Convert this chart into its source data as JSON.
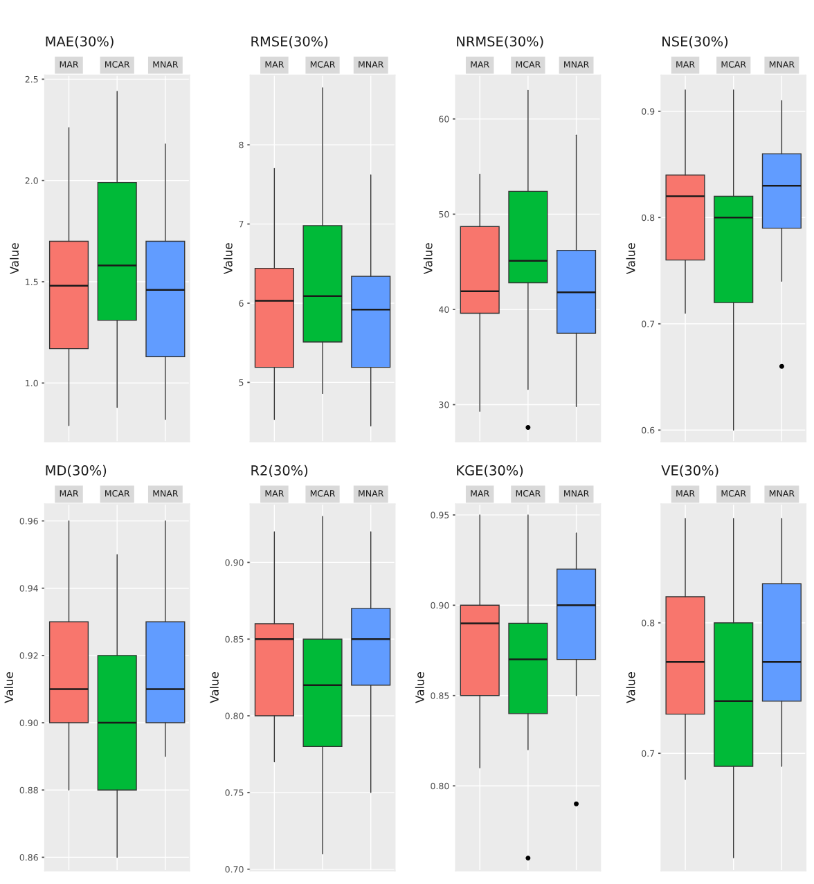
{
  "chart_data": [
    {
      "type": "box",
      "title": "MAE(30%)",
      "ylabel": "Value",
      "categories": [
        "MAR",
        "MCAR",
        "MNAR"
      ],
      "colors": [
        "#f8766d",
        "#00ba38",
        "#619cff"
      ],
      "ylim": [
        0.71,
        2.52
      ],
      "yticks": [
        {
          "value": 1.0,
          "label": "1.0"
        },
        1.5,
        {
          "value": 2.0,
          "label": "2.0"
        },
        2.5
      ],
      "grid": true,
      "boxes": [
        {
          "low": 0.79,
          "q1": 1.17,
          "median": 1.48,
          "q3": 1.7,
          "high": 2.26
        },
        {
          "low": 0.88,
          "q1": 1.31,
          "median": 1.58,
          "q3": 1.99,
          "high": 2.44
        },
        {
          "low": 0.82,
          "q1": 1.13,
          "median": 1.46,
          "q3": 1.7,
          "high": 2.18
        }
      ]
    },
    {
      "type": "box",
      "title": "RMSE(30%)",
      "ylabel": "Value",
      "categories": [
        "MAR",
        "MCAR",
        "MNAR"
      ],
      "colors": [
        "#f8766d",
        "#00ba38",
        "#619cff"
      ],
      "ylim": [
        4.25,
        8.88
      ],
      "yticks": [
        5,
        6,
        7,
        8
      ],
      "grid": true,
      "boxes": [
        {
          "low": 4.53,
          "q1": 5.19,
          "median": 6.03,
          "q3": 6.44,
          "high": 7.7
        },
        {
          "low": 4.86,
          "q1": 5.51,
          "median": 6.09,
          "q3": 6.98,
          "high": 8.72
        },
        {
          "low": 4.45,
          "q1": 5.19,
          "median": 5.92,
          "q3": 6.34,
          "high": 7.62
        }
      ]
    },
    {
      "type": "box",
      "title": "NRMSE(30%)",
      "ylabel": "Value",
      "categories": [
        "MAR",
        "MCAR",
        "MNAR"
      ],
      "colors": [
        "#f8766d",
        "#00ba38",
        "#619cff"
      ],
      "ylim": [
        26.1,
        64.6
      ],
      "yticks": [
        30,
        40,
        50,
        60
      ],
      "grid": true,
      "boxes": [
        {
          "low": 29.3,
          "q1": 39.6,
          "median": 41.9,
          "q3": 48.7,
          "high": 54.2
        },
        {
          "low": 31.6,
          "q1": 42.8,
          "median": 45.1,
          "q3": 52.4,
          "high": 63.0,
          "outliers": [
            27.6
          ]
        },
        {
          "low": 29.8,
          "q1": 37.5,
          "median": 41.8,
          "q3": 46.2,
          "high": 58.3
        }
      ]
    },
    {
      "type": "box",
      "title": "NSE(30%)",
      "ylabel": "Value",
      "categories": [
        "MAR",
        "MCAR",
        "MNAR"
      ],
      "colors": [
        "#f8766d",
        "#00ba38",
        "#619cff"
      ],
      "ylim": [
        0.589,
        0.934
      ],
      "yticks": [
        0.6,
        0.7,
        0.8,
        0.9
      ],
      "grid": true,
      "boxes": [
        {
          "low": 0.71,
          "q1": 0.76,
          "median": 0.82,
          "q3": 0.84,
          "high": 0.92
        },
        {
          "low": 0.6,
          "q1": 0.72,
          "median": 0.8,
          "q3": 0.82,
          "high": 0.92
        },
        {
          "low": 0.74,
          "q1": 0.79,
          "median": 0.83,
          "q3": 0.86,
          "high": 0.91,
          "outliers": [
            0.66
          ]
        }
      ]
    },
    {
      "type": "box",
      "title": "MD(30%)",
      "ylabel": "Value",
      "categories": [
        "MAR",
        "MCAR",
        "MNAR"
      ],
      "colors": [
        "#f8766d",
        "#00ba38",
        "#619cff"
      ],
      "ylim": [
        0.856,
        0.965
      ],
      "yticks": [
        0.86,
        0.88,
        {
          "value": 0.9,
          "label": "0.90"
        },
        0.92,
        0.94,
        0.96
      ],
      "grid": true,
      "boxes": [
        {
          "low": 0.88,
          "q1": 0.9,
          "median": 0.91,
          "q3": 0.93,
          "high": 0.96
        },
        {
          "low": 0.86,
          "q1": 0.88,
          "median": 0.9,
          "q3": 0.92,
          "high": 0.95
        },
        {
          "low": 0.89,
          "q1": 0.9,
          "median": 0.91,
          "q3": 0.93,
          "high": 0.96
        }
      ]
    },
    {
      "type": "box",
      "title": "R2(30%)",
      "ylabel": "Value",
      "categories": [
        "MAR",
        "MCAR",
        "MNAR"
      ],
      "colors": [
        "#f8766d",
        "#00ba38",
        "#619cff"
      ],
      "ylim": [
        0.699,
        0.938
      ],
      "yticks": [
        {
          "value": 0.7,
          "label": "0.70"
        },
        0.75,
        {
          "value": 0.8,
          "label": "0.80"
        },
        0.85,
        {
          "value": 0.9,
          "label": "0.90"
        }
      ],
      "grid": true,
      "boxes": [
        {
          "low": 0.77,
          "q1": 0.8,
          "median": 0.85,
          "q3": 0.86,
          "high": 0.92
        },
        {
          "low": 0.71,
          "q1": 0.78,
          "median": 0.82,
          "q3": 0.85,
          "high": 0.93
        },
        {
          "low": 0.75,
          "q1": 0.82,
          "median": 0.85,
          "q3": 0.87,
          "high": 0.92
        }
      ]
    },
    {
      "type": "box",
      "title": "KGE(30%)",
      "ylabel": "Value",
      "categories": [
        "MAR",
        "MCAR",
        "MNAR"
      ],
      "colors": [
        "#f8766d",
        "#00ba38",
        "#619cff"
      ],
      "ylim": [
        0.753,
        0.956
      ],
      "yticks": [
        {
          "value": 0.8,
          "label": "0.80"
        },
        0.85,
        {
          "value": 0.9,
          "label": "0.90"
        },
        0.95
      ],
      "grid": true,
      "boxes": [
        {
          "low": 0.81,
          "q1": 0.85,
          "median": 0.89,
          "q3": 0.9,
          "high": 0.95
        },
        {
          "low": 0.82,
          "q1": 0.84,
          "median": 0.87,
          "q3": 0.89,
          "high": 0.95,
          "outliers": [
            0.76
          ]
        },
        {
          "low": 0.85,
          "q1": 0.87,
          "median": 0.9,
          "q3": 0.92,
          "high": 0.94,
          "outliers": [
            0.79
          ]
        }
      ]
    },
    {
      "type": "box",
      "title": "VE(30%)",
      "ylabel": "Value",
      "categories": [
        "MAR",
        "MCAR",
        "MNAR"
      ],
      "colors": [
        "#f8766d",
        "#00ba38",
        "#619cff"
      ],
      "ylim": [
        0.61,
        0.891
      ],
      "yticks": [
        0.7,
        0.8
      ],
      "grid": true,
      "boxes": [
        {
          "low": 0.68,
          "q1": 0.73,
          "median": 0.77,
          "q3": 0.82,
          "high": 0.88
        },
        {
          "low": 0.62,
          "q1": 0.69,
          "median": 0.74,
          "q3": 0.8,
          "high": 0.88
        },
        {
          "low": 0.69,
          "q1": 0.74,
          "median": 0.77,
          "q3": 0.83,
          "high": 0.88
        }
      ]
    }
  ]
}
